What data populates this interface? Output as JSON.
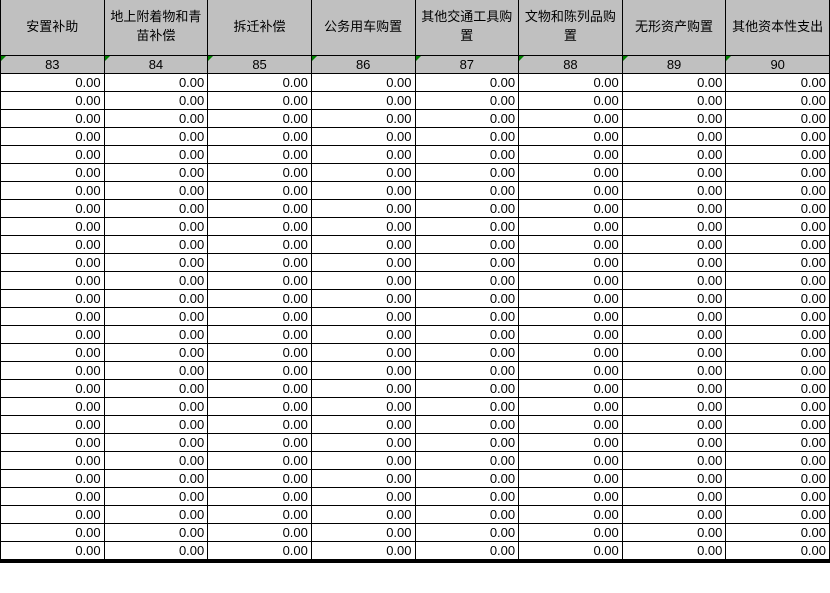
{
  "colors": {
    "header_bg": "#c0c0c0",
    "grid": "#000000",
    "cell_bg": "#ffffff",
    "error_triangle": "#008000"
  },
  "icons": {
    "error_indicator": "error-indicator-triangle"
  },
  "table": {
    "columns": [
      {
        "label": "安置补助",
        "code": "83"
      },
      {
        "label": "地上附着物和青苗补偿",
        "code": "84"
      },
      {
        "label": "拆迁补偿",
        "code": "85"
      },
      {
        "label": "公务用车购置",
        "code": "86"
      },
      {
        "label": "其他交通工具购置",
        "code": "87"
      },
      {
        "label": "文物和陈列品购置",
        "code": "88"
      },
      {
        "label": "无形资产购置",
        "code": "89"
      },
      {
        "label": "其他资本性支出",
        "code": "90"
      }
    ],
    "rows": [
      [
        "0.00",
        "0.00",
        "0.00",
        "0.00",
        "0.00",
        "0.00",
        "0.00",
        "0.00"
      ],
      [
        "0.00",
        "0.00",
        "0.00",
        "0.00",
        "0.00",
        "0.00",
        "0.00",
        "0.00"
      ],
      [
        "0.00",
        "0.00",
        "0.00",
        "0.00",
        "0.00",
        "0.00",
        "0.00",
        "0.00"
      ],
      [
        "0.00",
        "0.00",
        "0.00",
        "0.00",
        "0.00",
        "0.00",
        "0.00",
        "0.00"
      ],
      [
        "0.00",
        "0.00",
        "0.00",
        "0.00",
        "0.00",
        "0.00",
        "0.00",
        "0.00"
      ],
      [
        "0.00",
        "0.00",
        "0.00",
        "0.00",
        "0.00",
        "0.00",
        "0.00",
        "0.00"
      ],
      [
        "0.00",
        "0.00",
        "0.00",
        "0.00",
        "0.00",
        "0.00",
        "0.00",
        "0.00"
      ],
      [
        "0.00",
        "0.00",
        "0.00",
        "0.00",
        "0.00",
        "0.00",
        "0.00",
        "0.00"
      ],
      [
        "0.00",
        "0.00",
        "0.00",
        "0.00",
        "0.00",
        "0.00",
        "0.00",
        "0.00"
      ],
      [
        "0.00",
        "0.00",
        "0.00",
        "0.00",
        "0.00",
        "0.00",
        "0.00",
        "0.00"
      ],
      [
        "0.00",
        "0.00",
        "0.00",
        "0.00",
        "0.00",
        "0.00",
        "0.00",
        "0.00"
      ],
      [
        "0.00",
        "0.00",
        "0.00",
        "0.00",
        "0.00",
        "0.00",
        "0.00",
        "0.00"
      ],
      [
        "0.00",
        "0.00",
        "0.00",
        "0.00",
        "0.00",
        "0.00",
        "0.00",
        "0.00"
      ],
      [
        "0.00",
        "0.00",
        "0.00",
        "0.00",
        "0.00",
        "0.00",
        "0.00",
        "0.00"
      ],
      [
        "0.00",
        "0.00",
        "0.00",
        "0.00",
        "0.00",
        "0.00",
        "0.00",
        "0.00"
      ],
      [
        "0.00",
        "0.00",
        "0.00",
        "0.00",
        "0.00",
        "0.00",
        "0.00",
        "0.00"
      ],
      [
        "0.00",
        "0.00",
        "0.00",
        "0.00",
        "0.00",
        "0.00",
        "0.00",
        "0.00"
      ],
      [
        "0.00",
        "0.00",
        "0.00",
        "0.00",
        "0.00",
        "0.00",
        "0.00",
        "0.00"
      ],
      [
        "0.00",
        "0.00",
        "0.00",
        "0.00",
        "0.00",
        "0.00",
        "0.00",
        "0.00"
      ],
      [
        "0.00",
        "0.00",
        "0.00",
        "0.00",
        "0.00",
        "0.00",
        "0.00",
        "0.00"
      ],
      [
        "0.00",
        "0.00",
        "0.00",
        "0.00",
        "0.00",
        "0.00",
        "0.00",
        "0.00"
      ],
      [
        "0.00",
        "0.00",
        "0.00",
        "0.00",
        "0.00",
        "0.00",
        "0.00",
        "0.00"
      ],
      [
        "0.00",
        "0.00",
        "0.00",
        "0.00",
        "0.00",
        "0.00",
        "0.00",
        "0.00"
      ],
      [
        "0.00",
        "0.00",
        "0.00",
        "0.00",
        "0.00",
        "0.00",
        "0.00",
        "0.00"
      ],
      [
        "0.00",
        "0.00",
        "0.00",
        "0.00",
        "0.00",
        "0.00",
        "0.00",
        "0.00"
      ],
      [
        "0.00",
        "0.00",
        "0.00",
        "0.00",
        "0.00",
        "0.00",
        "0.00",
        "0.00"
      ],
      [
        "0.00",
        "0.00",
        "0.00",
        "0.00",
        "0.00",
        "0.00",
        "0.00",
        "0.00"
      ]
    ]
  }
}
